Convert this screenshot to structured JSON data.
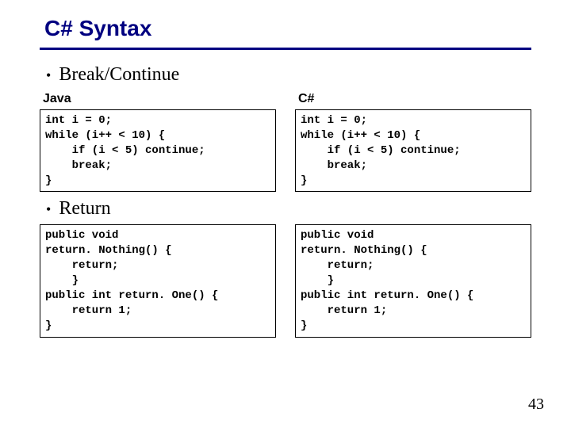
{
  "title": "C# Syntax",
  "bullets": {
    "first": "Break/Continue",
    "second": "Return"
  },
  "headers": {
    "java": "Java",
    "csharp": "C#"
  },
  "code": {
    "break_java": "int i = 0;\nwhile (i++ < 10) {\n    if (i < 5) continue;\n    break;\n}",
    "break_cs": "int i = 0;\nwhile (i++ < 10) {\n    if (i < 5) continue;\n    break;\n}",
    "return_java": "public void\nreturn. Nothing() {\n    return;\n    }\npublic int return. One() {\n    return 1;\n}",
    "return_cs": "public void\nreturn. Nothing() {\n    return;\n    }\npublic int return. One() {\n    return 1;\n}"
  },
  "page_number": "43",
  "colors": {
    "title": "#000080",
    "rule": "#000080",
    "text": "#000000",
    "border": "#000000",
    "background": "#ffffff"
  }
}
